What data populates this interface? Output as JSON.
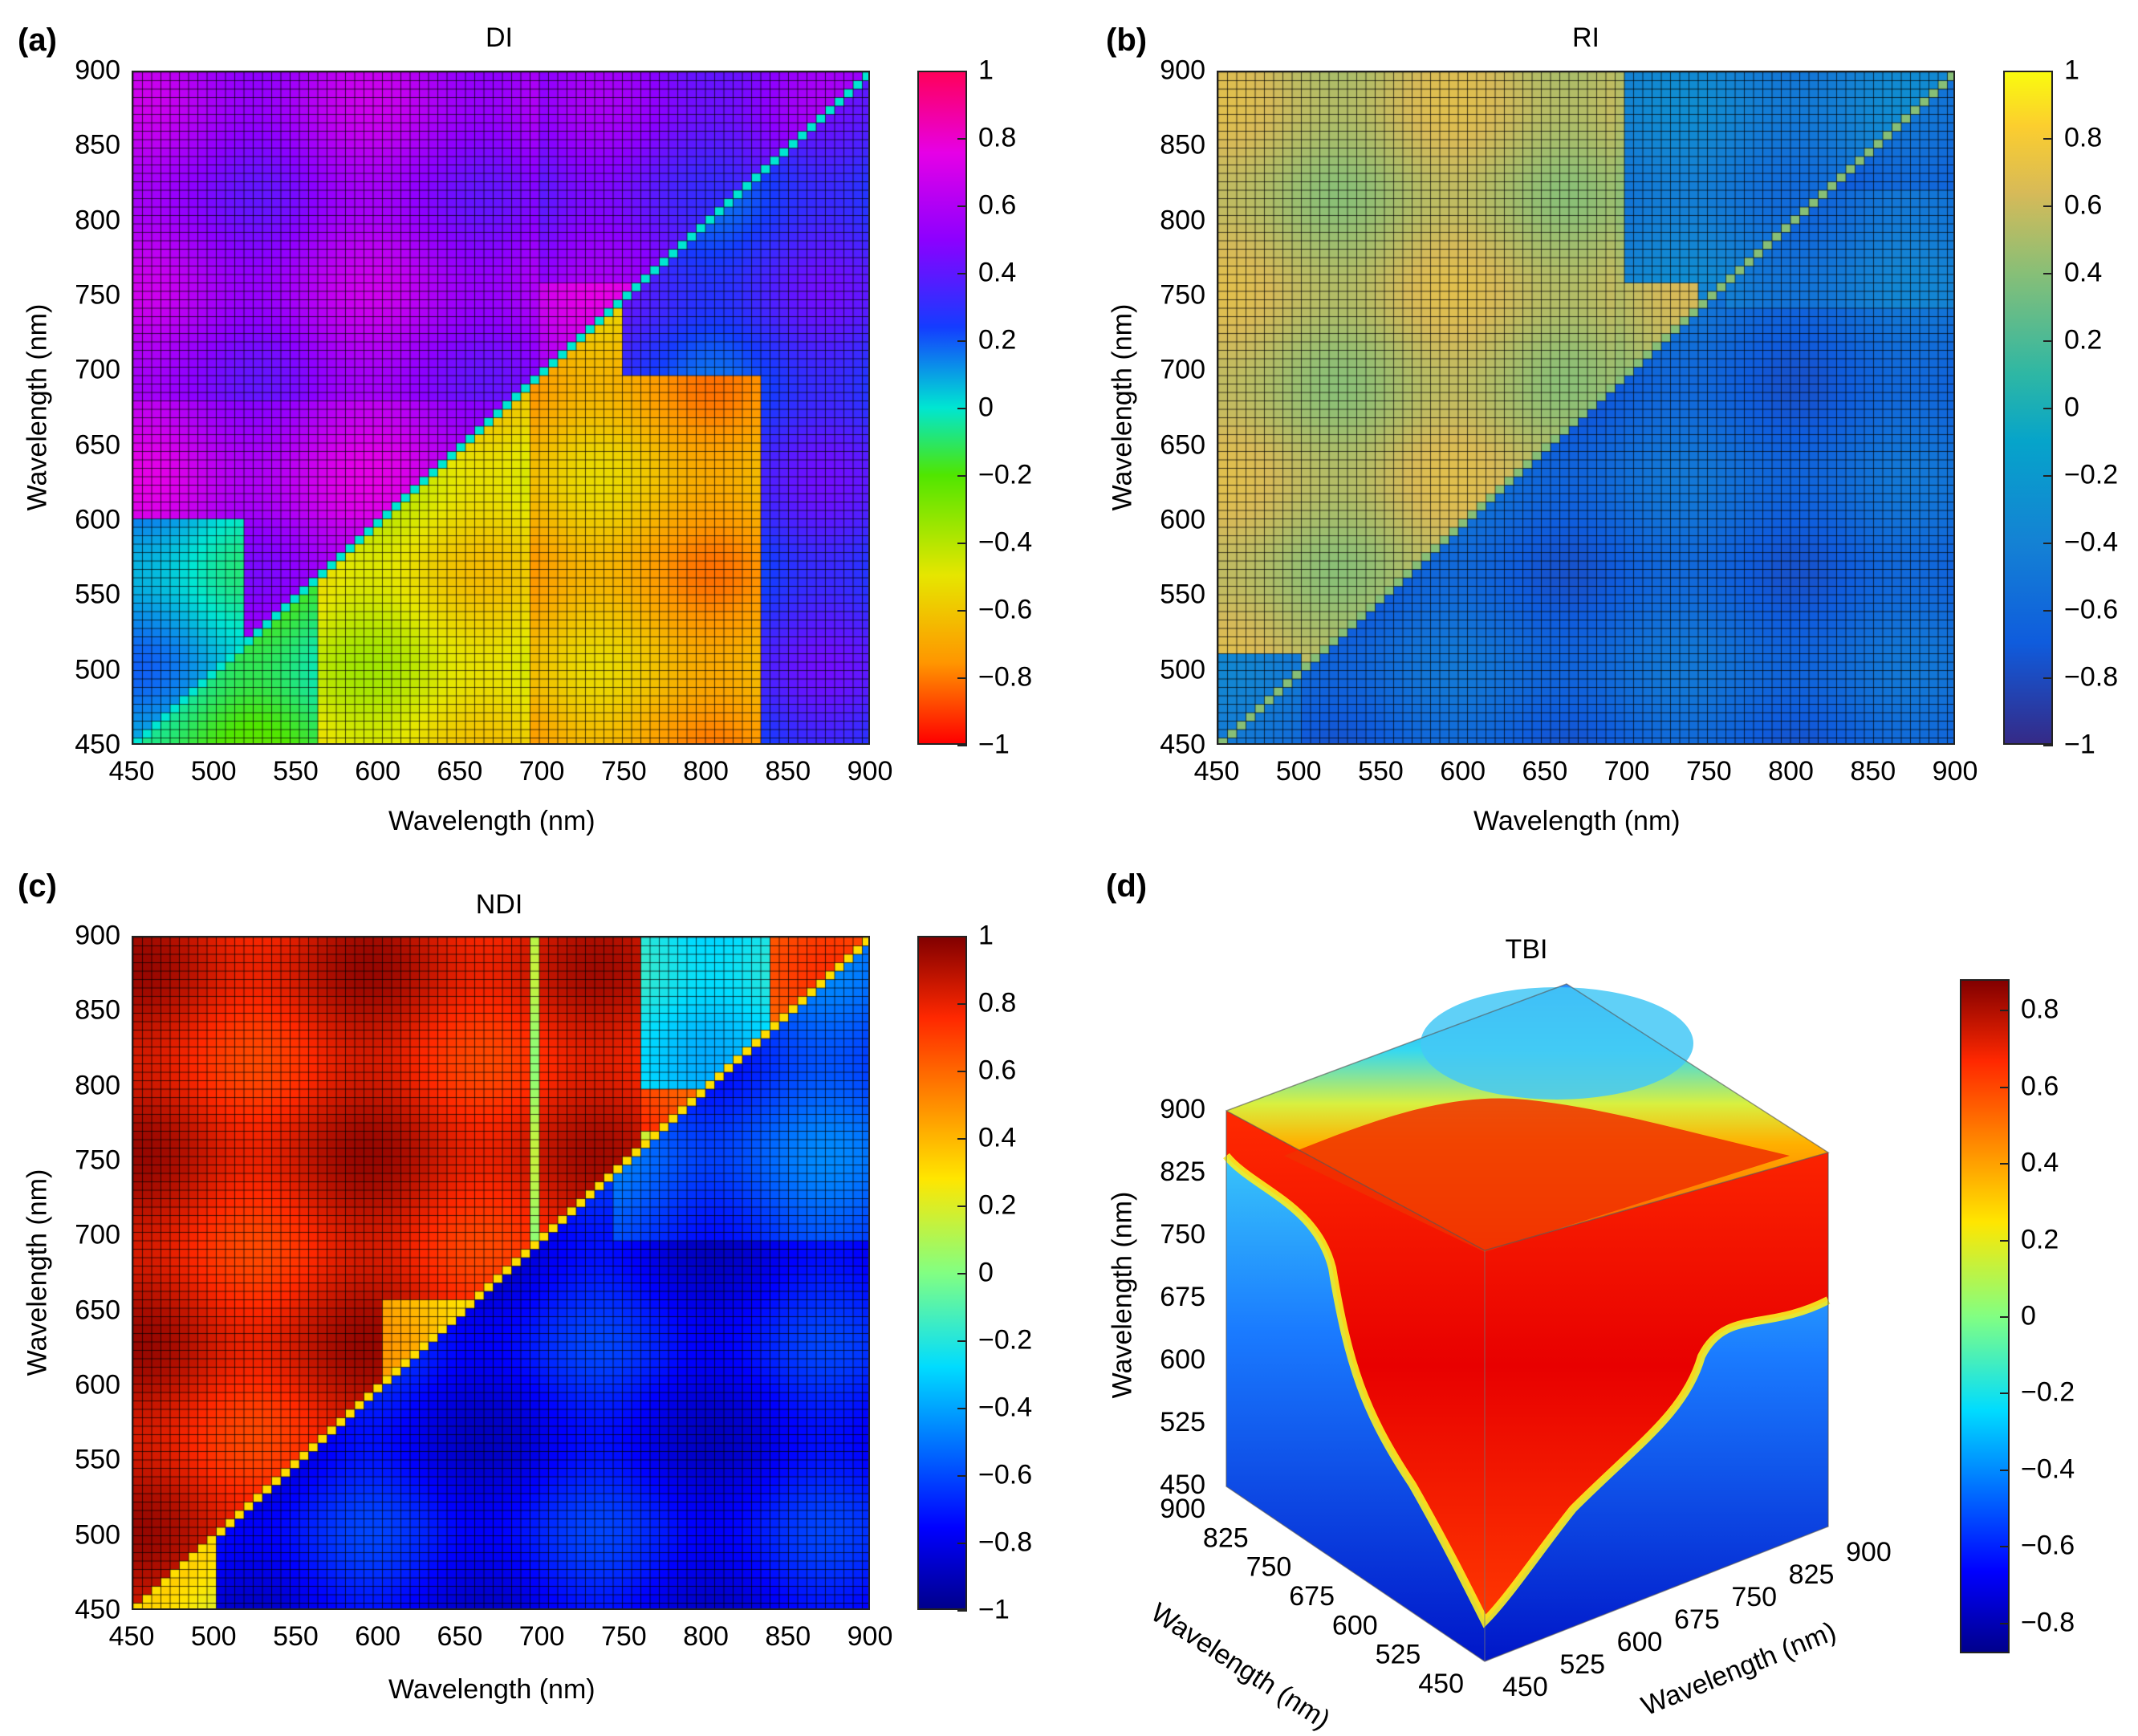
{
  "chart_data": [
    {
      "panel": "(a)",
      "type": "heatmap",
      "title": "DI",
      "xlabel": "Wavelength (nm)",
      "ylabel": "Wavelength (nm)",
      "xlim": [
        450,
        900
      ],
      "ylim": [
        450,
        900
      ],
      "xticks": [
        "450",
        "500",
        "550",
        "600",
        "650",
        "700",
        "750",
        "800",
        "850",
        "900"
      ],
      "yticks": [
        "450",
        "500",
        "550",
        "600",
        "650",
        "700",
        "750",
        "800",
        "850",
        "900"
      ],
      "colorbar": {
        "range": [
          -1,
          1
        ],
        "ticks": [
          "1",
          "0.8",
          "0.6",
          "0.4",
          "0.2",
          "0",
          "−0.2",
          "−0.4",
          "−0.6",
          "−0.8",
          "−1"
        ],
        "colormap": "hsv-like"
      },
      "upper_triangle_value": 0.6,
      "lower_triangle_value": -0.6
    },
    {
      "panel": "(b)",
      "type": "heatmap",
      "title": "RI",
      "xlabel": "Wavelength (nm)",
      "ylabel": "Wavelength (nm)",
      "xlim": [
        450,
        900
      ],
      "ylim": [
        450,
        900
      ],
      "xticks": [
        "450",
        "500",
        "550",
        "600",
        "650",
        "700",
        "750",
        "800",
        "850",
        "900"
      ],
      "yticks": [
        "450",
        "500",
        "550",
        "600",
        "650",
        "700",
        "750",
        "800",
        "850",
        "900"
      ],
      "colorbar": {
        "range": [
          -1,
          1
        ],
        "ticks": [
          "1",
          "0.8",
          "0.6",
          "0.4",
          "0.2",
          "0",
          "−0.2",
          "−0.4",
          "−0.6",
          "−0.8",
          "−1"
        ],
        "colormap": "parula"
      },
      "upper_triangle_value": 0.5,
      "lower_triangle_value": -0.6
    },
    {
      "panel": "(c)",
      "type": "heatmap",
      "title": "NDI",
      "xlabel": "Wavelength (nm)",
      "ylabel": "Wavelength (nm)",
      "xlim": [
        450,
        900
      ],
      "ylim": [
        450,
        900
      ],
      "xticks": [
        "450",
        "500",
        "550",
        "600",
        "650",
        "700",
        "750",
        "800",
        "850",
        "900"
      ],
      "yticks": [
        "450",
        "500",
        "550",
        "600",
        "650",
        "700",
        "750",
        "800",
        "850",
        "900"
      ],
      "colorbar": {
        "range": [
          -1,
          1
        ],
        "ticks": [
          "1",
          "0.8",
          "0.6",
          "0.4",
          "0.2",
          "0",
          "−0.2",
          "−0.4",
          "−0.6",
          "−0.8",
          "−1"
        ],
        "colormap": "jet"
      },
      "upper_triangle_value": 0.8,
      "lower_triangle_value": -0.7
    },
    {
      "panel": "(d)",
      "type": "heatmap",
      "title": "TBI",
      "subtype": "3d-cube",
      "zlabel": "Wavelength (nm)",
      "xlabel": "Wavelength (nm)",
      "ylabel": "Wavelength (nm)",
      "zticks": [
        "450",
        "525",
        "600",
        "675",
        "750",
        "825",
        "900"
      ],
      "left_axis_ticks": [
        "900",
        "825",
        "750",
        "675",
        "600",
        "525",
        "450"
      ],
      "right_axis_ticks": [
        "450",
        "525",
        "600",
        "675",
        "750",
        "825",
        "900"
      ],
      "colorbar": {
        "range": [
          -0.88,
          0.88
        ],
        "ticks": [
          "0.8",
          "0.6",
          "0.4",
          "0.2",
          "0",
          "−0.2",
          "−0.4",
          "−0.6",
          "−0.8"
        ],
        "colormap": "jet"
      }
    }
  ]
}
